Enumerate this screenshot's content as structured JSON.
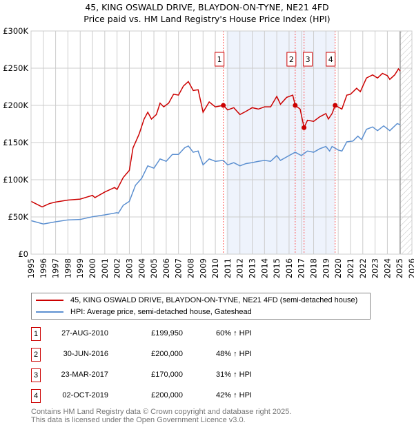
{
  "chart_data": {
    "type": "line",
    "title": "45, KING OSWALD DRIVE, BLAYDON-ON-TYNE, NE21 4FD",
    "subtitle": "Price paid vs. HM Land Registry's House Price Index (HPI)",
    "xlim": [
      1995,
      2026
    ],
    "ylim": [
      0,
      300000
    ],
    "x_ticks": [
      "1995",
      "1996",
      "1997",
      "1998",
      "1999",
      "2000",
      "2001",
      "2002",
      "2003",
      "2004",
      "2005",
      "2006",
      "2007",
      "2008",
      "2009",
      "2010",
      "2011",
      "2012",
      "2013",
      "2014",
      "2015",
      "2016",
      "2017",
      "2018",
      "2019",
      "2020",
      "2021",
      "2022",
      "2023",
      "2024",
      "2025",
      "2026"
    ],
    "y_ticks": [
      {
        "v": 0,
        "label": "£0"
      },
      {
        "v": 50000,
        "label": "£50K"
      },
      {
        "v": 100000,
        "label": "£100K"
      },
      {
        "v": 150000,
        "label": "£150K"
      },
      {
        "v": 200000,
        "label": "£200K"
      },
      {
        "v": 250000,
        "label": "£250K"
      },
      {
        "v": 300000,
        "label": "£300K"
      }
    ],
    "grid": true,
    "shaded_range": [
      2010.9,
      2019.75
    ],
    "forecast_from": 2025.05,
    "series": [
      {
        "name": "45, KING OSWALD DRIVE, BLAYDON-ON-TYNE, NE21 4FD (semi-detached house)",
        "color": "#cc0000",
        "points": [
          [
            1995,
            71000
          ],
          [
            1995.9,
            63500
          ],
          [
            1996.5,
            68000
          ],
          [
            1997,
            70000
          ],
          [
            1998,
            72700
          ],
          [
            1999,
            74000
          ],
          [
            2000,
            79000
          ],
          [
            2000.2,
            76000
          ],
          [
            2001,
            83500
          ],
          [
            2001.8,
            89600
          ],
          [
            2002,
            87000
          ],
          [
            2002.5,
            103000
          ],
          [
            2003,
            112600
          ],
          [
            2003.3,
            143000
          ],
          [
            2003.6,
            154000
          ],
          [
            2003.8,
            161600
          ],
          [
            2004.2,
            181600
          ],
          [
            2004.5,
            190800
          ],
          [
            2004.8,
            181600
          ],
          [
            2005.2,
            187700
          ],
          [
            2005.5,
            203000
          ],
          [
            2005.8,
            198000
          ],
          [
            2006.2,
            203000
          ],
          [
            2006.6,
            215000
          ],
          [
            2007,
            213800
          ],
          [
            2007.4,
            226000
          ],
          [
            2007.8,
            232000
          ],
          [
            2008.2,
            220000
          ],
          [
            2008.6,
            221000
          ],
          [
            2009,
            190800
          ],
          [
            2009.5,
            204600
          ],
          [
            2010,
            198000
          ],
          [
            2010.65,
            199950
          ],
          [
            2011,
            193900
          ],
          [
            2011.5,
            196900
          ],
          [
            2012,
            187700
          ],
          [
            2012.5,
            192000
          ],
          [
            2013,
            196900
          ],
          [
            2013.5,
            195000
          ],
          [
            2014,
            198000
          ],
          [
            2014.5,
            198000
          ],
          [
            2015,
            212000
          ],
          [
            2015.3,
            201500
          ],
          [
            2015.8,
            210700
          ],
          [
            2016.3,
            213800
          ],
          [
            2016.5,
            200000
          ],
          [
            2016.9,
            195000
          ],
          [
            2017.22,
            170000
          ],
          [
            2017.5,
            180000
          ],
          [
            2018,
            178500
          ],
          [
            2018.5,
            184700
          ],
          [
            2019,
            189000
          ],
          [
            2019.2,
            181600
          ],
          [
            2019.5,
            189000
          ],
          [
            2019.75,
            200000
          ],
          [
            2020.3,
            195000
          ],
          [
            2020.7,
            213800
          ],
          [
            2021,
            215000
          ],
          [
            2021.5,
            223000
          ],
          [
            2021.8,
            218400
          ],
          [
            2022.3,
            236800
          ],
          [
            2022.8,
            241000
          ],
          [
            2023.2,
            236800
          ],
          [
            2023.6,
            243000
          ],
          [
            2024,
            240000
          ],
          [
            2024.2,
            235000
          ],
          [
            2024.6,
            241000
          ],
          [
            2024.9,
            249000
          ],
          [
            2025.05,
            246000
          ]
        ]
      },
      {
        "name": "HPI: Average price, semi-detached house, Gateshead",
        "color": "#5b8fd0",
        "points": [
          [
            1995,
            45000
          ],
          [
            1996,
            40500
          ],
          [
            1997,
            43500
          ],
          [
            1998,
            46000
          ],
          [
            1999,
            46600
          ],
          [
            2000,
            50300
          ],
          [
            2001,
            52800
          ],
          [
            2002,
            55800
          ],
          [
            2002.1,
            55000
          ],
          [
            2002.5,
            65600
          ],
          [
            2003,
            71000
          ],
          [
            2003.5,
            92600
          ],
          [
            2004,
            101800
          ],
          [
            2004.5,
            118700
          ],
          [
            2005,
            115600
          ],
          [
            2005.5,
            128000
          ],
          [
            2006,
            124800
          ],
          [
            2006.5,
            134000
          ],
          [
            2007,
            134000
          ],
          [
            2007.5,
            143000
          ],
          [
            2007.8,
            145400
          ],
          [
            2008.2,
            137000
          ],
          [
            2008.6,
            138600
          ],
          [
            2009,
            120000
          ],
          [
            2009.5,
            128000
          ],
          [
            2010,
            124800
          ],
          [
            2010.65,
            126000
          ],
          [
            2011,
            120000
          ],
          [
            2011.5,
            123000
          ],
          [
            2012,
            118700
          ],
          [
            2012.5,
            121800
          ],
          [
            2013,
            123000
          ],
          [
            2013.5,
            124800
          ],
          [
            2014,
            126000
          ],
          [
            2014.5,
            124800
          ],
          [
            2015,
            132500
          ],
          [
            2015.3,
            126000
          ],
          [
            2016,
            132500
          ],
          [
            2016.5,
            137000
          ],
          [
            2017,
            132500
          ],
          [
            2017.5,
            138600
          ],
          [
            2018,
            137000
          ],
          [
            2018.5,
            141700
          ],
          [
            2019,
            144800
          ],
          [
            2019.3,
            138600
          ],
          [
            2019.5,
            144800
          ],
          [
            2020,
            140000
          ],
          [
            2020.3,
            138600
          ],
          [
            2020.7,
            151000
          ],
          [
            2021.2,
            152000
          ],
          [
            2021.6,
            158600
          ],
          [
            2021.9,
            154000
          ],
          [
            2022.3,
            167800
          ],
          [
            2022.8,
            171000
          ],
          [
            2023.2,
            166000
          ],
          [
            2023.7,
            172400
          ],
          [
            2024.2,
            166000
          ],
          [
            2024.8,
            175500
          ],
          [
            2025.05,
            174000
          ]
        ]
      }
    ],
    "sales": [
      {
        "n": "1",
        "x": 2010.65,
        "date": "27-AUG-2010",
        "price": "£199,950",
        "value": 199950,
        "hpi": "60% ↑ HPI"
      },
      {
        "n": "2",
        "x": 2016.5,
        "date": "30-JUN-2016",
        "price": "£200,000",
        "value": 200000,
        "hpi": "48% ↑ HPI"
      },
      {
        "n": "3",
        "x": 2017.22,
        "date": "23-MAR-2017",
        "price": "£170,000",
        "value": 170000,
        "hpi": "31% ↑ HPI"
      },
      {
        "n": "4",
        "x": 2019.75,
        "date": "02-OCT-2019",
        "price": "£200,000",
        "value": 200000,
        "hpi": "42% ↑ HPI"
      }
    ]
  },
  "footer": {
    "line1": "Contains HM Land Registry data © Crown copyright and database right 2025.",
    "line2": "This data is licensed under the Open Government Licence v3.0."
  }
}
